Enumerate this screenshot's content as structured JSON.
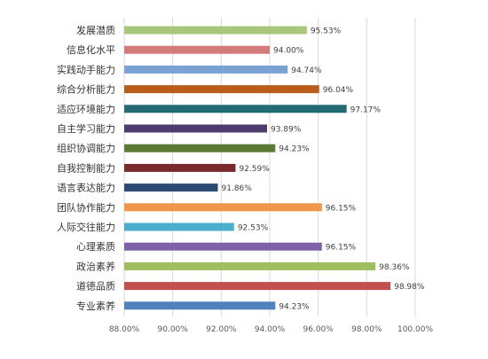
{
  "chart_data": {
    "type": "bar",
    "orientation": "horizontal",
    "categories": [
      "发展潜质",
      "信息化水平",
      "实践动手能力",
      "综合分析能力",
      "适应环境能力",
      "自主学习能力",
      "组织协调能力",
      "自我控制能力",
      "语言表达能力",
      "团队协作能力",
      "人际交往能力",
      "心理素质",
      "政治素养",
      "道德品质",
      "专业素养"
    ],
    "values": [
      95.53,
      94.0,
      94.74,
      96.04,
      97.17,
      93.89,
      94.23,
      92.59,
      91.86,
      96.15,
      92.53,
      96.15,
      98.36,
      98.98,
      94.23
    ],
    "value_labels": [
      "95.53%",
      "94.00%",
      "94.74%",
      "96.04%",
      "97.17%",
      "93.89%",
      "94.23%",
      "92.59%",
      "91.86%",
      "96.15%",
      "92.53%",
      "96.15%",
      "98.36%",
      "98.98%",
      "94.23%"
    ],
    "colors": [
      "#a9c77b",
      "#d37a7a",
      "#7aa2d2",
      "#b85e1a",
      "#236a72",
      "#4f3c6e",
      "#5b7a34",
      "#7a2a2a",
      "#2b4a73",
      "#f0954a",
      "#4aaecc",
      "#7e62a8",
      "#9fbf5e",
      "#c0504d",
      "#4f81bd"
    ],
    "xlim": [
      88,
      100
    ],
    "xticks": [
      88,
      90,
      92,
      94,
      96,
      98,
      100
    ],
    "xtick_labels": [
      "88.00%",
      "90.00%",
      "92.00%",
      "94.00%",
      "96.00%",
      "98.00%",
      "100.00%"
    ],
    "grid": true,
    "title": "",
    "xlabel": "",
    "ylabel": ""
  }
}
